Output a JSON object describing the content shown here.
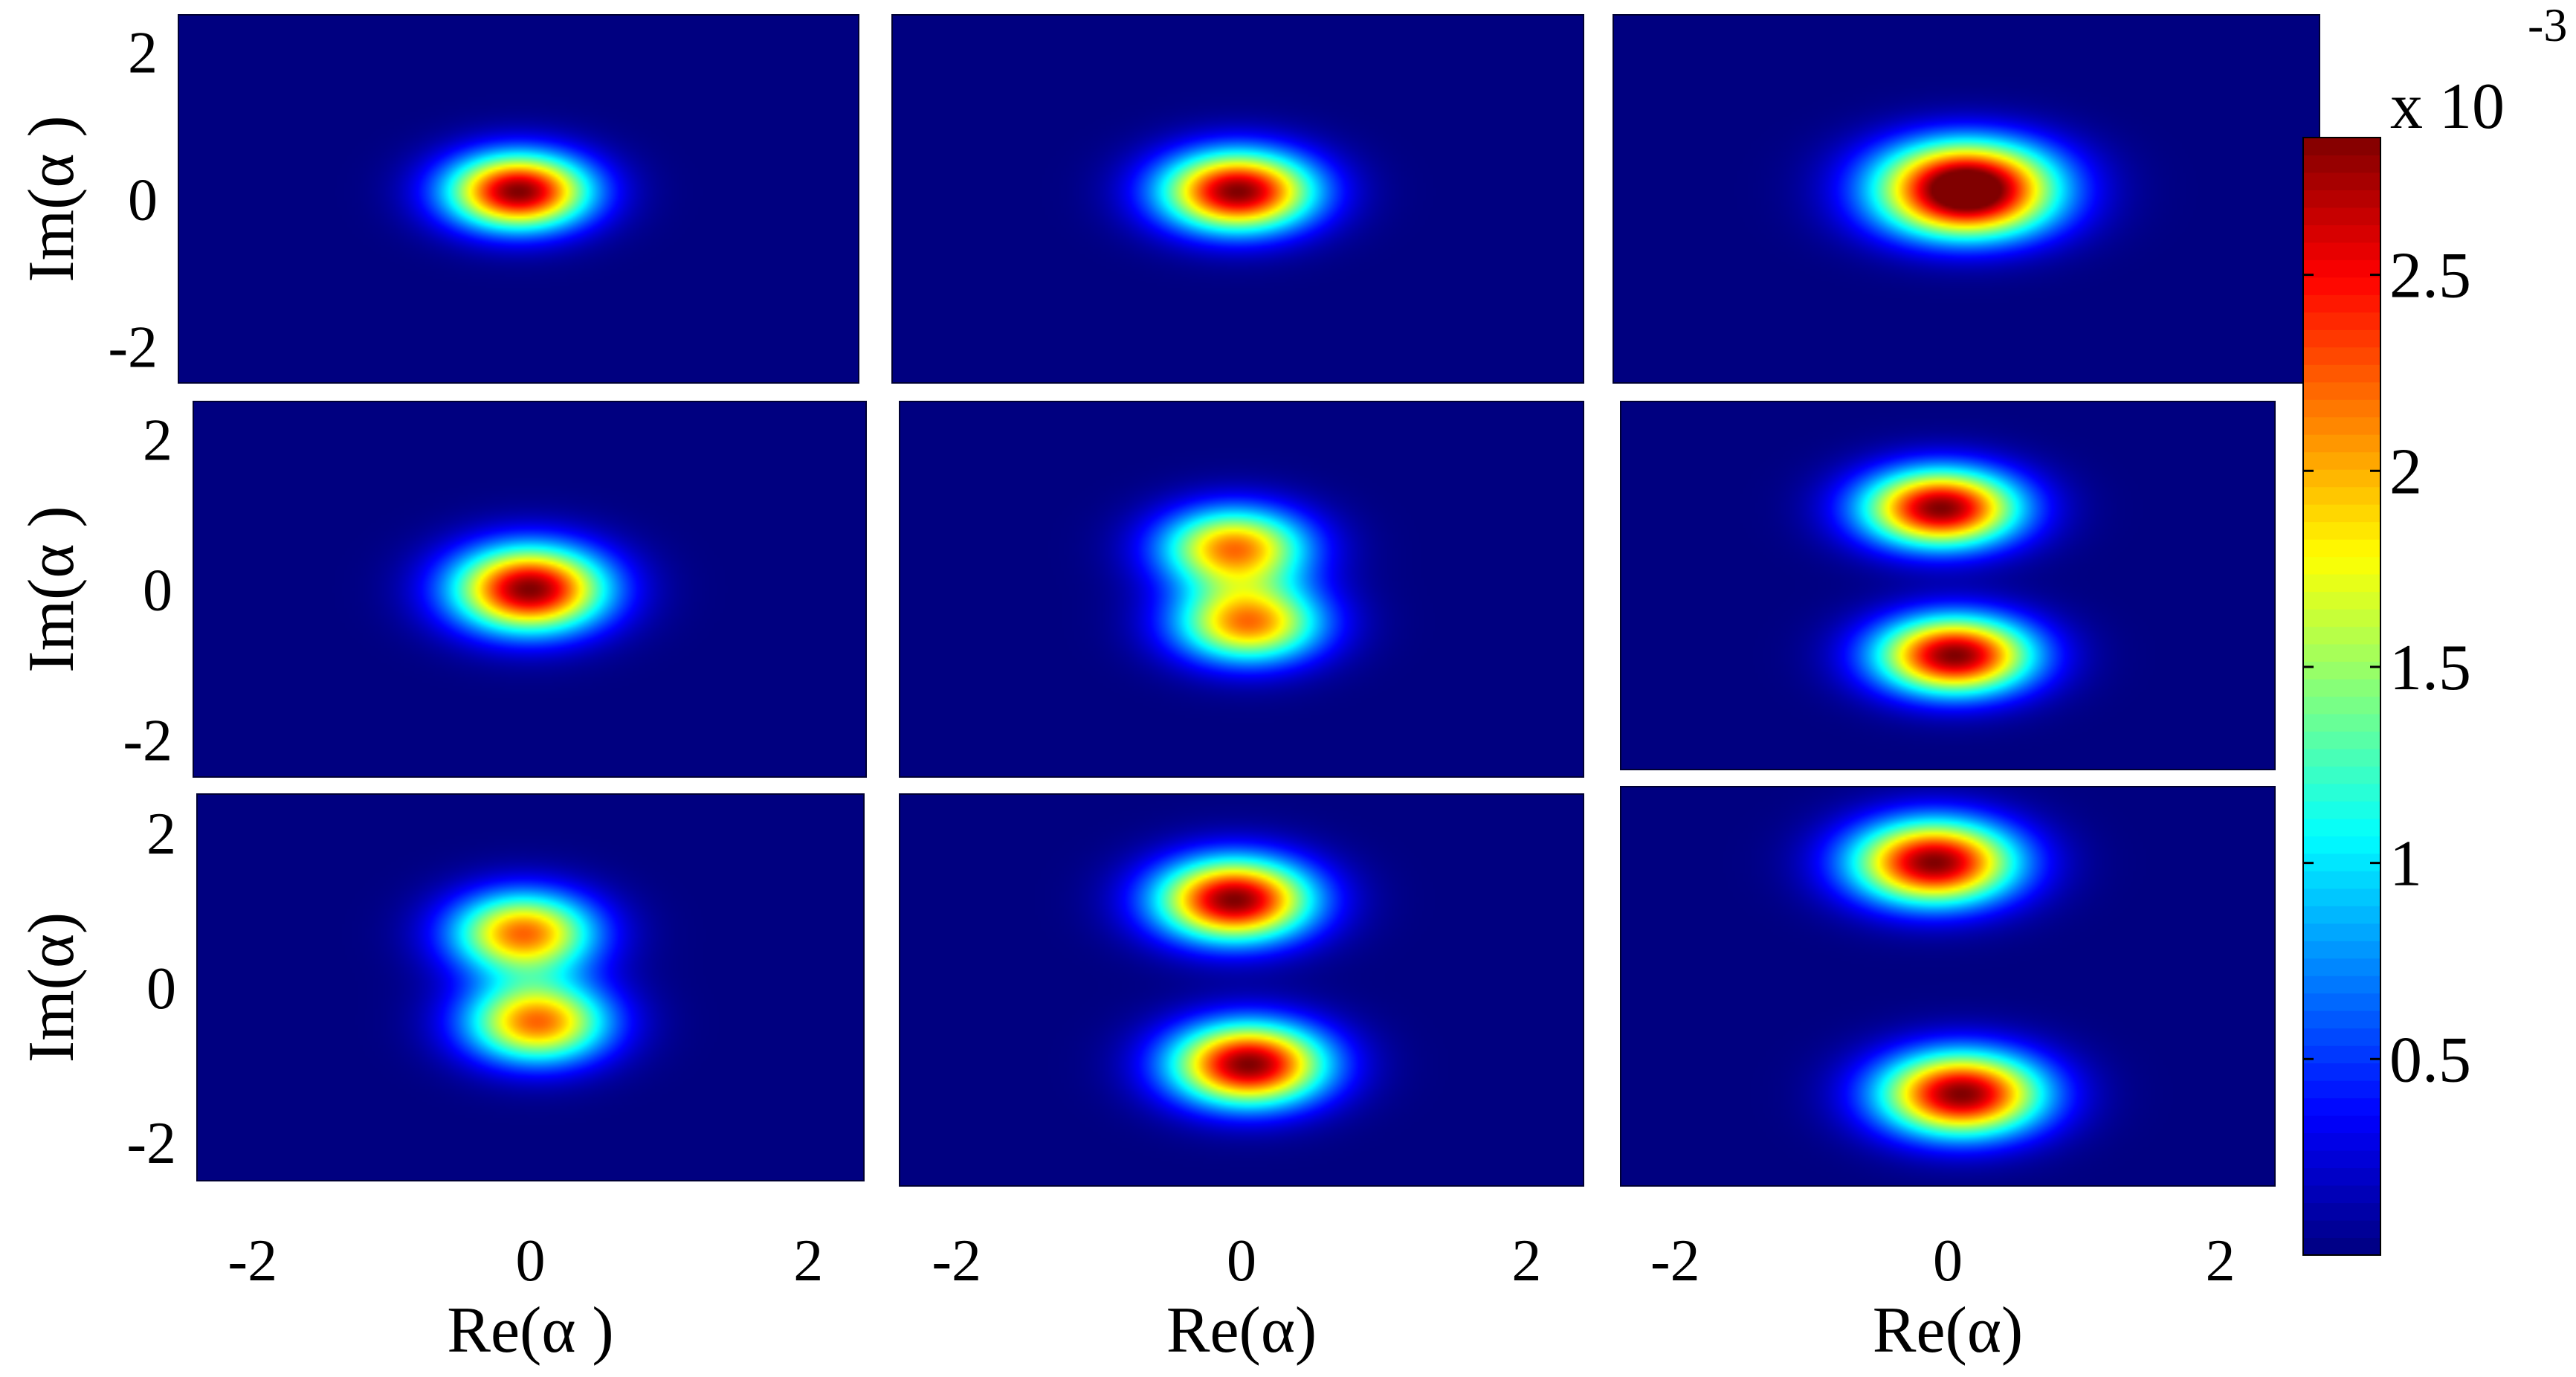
{
  "chart_data": {
    "type": "heatmap",
    "colormap": "jet",
    "grid": "off",
    "xlabels": [
      "Re(α )",
      "Re(α)",
      "Re(α)"
    ],
    "ylabels": [
      "Im(α )",
      "Im(α )",
      "Im(α)"
    ],
    "xlim": [
      -2.4,
      2.4
    ],
    "ylim": [
      -2.5,
      2.5
    ],
    "xticks": [
      -2,
      0,
      2
    ],
    "yticks": [
      2,
      0,
      -2
    ],
    "colorbar": {
      "exponent_label": "x 10",
      "exponent_value": "-3",
      "range": [
        0,
        2.85
      ],
      "ticks": [
        0.5,
        1,
        1.5,
        2,
        2.5
      ],
      "tick_labels": [
        "0.5",
        "1",
        "1.5",
        "2",
        "2.5"
      ]
    },
    "panels": [
      {
        "peaks": [
          {
            "x": 0.0,
            "y": 0.1,
            "amp": 2.85
          }
        ],
        "sx": 0.35,
        "sy": 0.36
      },
      {
        "peaks": [
          {
            "x": 0.0,
            "y": 0.1,
            "amp": 2.85
          }
        ],
        "sx": 0.37,
        "sy": 0.38
      },
      {
        "peaks": [
          {
            "x": 0.0,
            "y": 0.35,
            "amp": 2.0
          },
          {
            "x": 0.0,
            "y": -0.1,
            "amp": 2.0
          }
        ],
        "sx": 0.42,
        "sy": 0.37
      },
      {
        "peaks": [
          {
            "x": 0.0,
            "y": 0.0,
            "amp": 2.85
          }
        ],
        "sx": 0.38,
        "sy": 0.4
      },
      {
        "peaks": [
          {
            "x": -0.05,
            "y": 0.55,
            "amp": 2.15
          },
          {
            "x": 0.05,
            "y": -0.45,
            "amp": 2.15
          }
        ],
        "sx": 0.36,
        "sy": 0.37
      },
      {
        "peaks": [
          {
            "x": -0.05,
            "y": 1.05,
            "amp": 2.85
          },
          {
            "x": 0.05,
            "y": -0.95,
            "amp": 2.85
          }
        ],
        "sx": 0.4,
        "sy": 0.37
      },
      {
        "peaks": [
          {
            "x": -0.05,
            "y": 0.7,
            "amp": 2.2
          },
          {
            "x": 0.05,
            "y": -0.45,
            "amp": 2.2
          }
        ],
        "sx": 0.36,
        "sy": 0.37
      },
      {
        "peaks": [
          {
            "x": -0.05,
            "y": 1.15,
            "amp": 2.85
          },
          {
            "x": 0.05,
            "y": -0.95,
            "amp": 2.85
          }
        ],
        "sx": 0.38,
        "sy": 0.37
      },
      {
        "peaks": [
          {
            "x": -0.1,
            "y": 1.55,
            "amp": 2.85
          },
          {
            "x": 0.1,
            "y": -1.35,
            "amp": 2.85
          }
        ],
        "sx": 0.42,
        "sy": 0.37
      }
    ]
  }
}
